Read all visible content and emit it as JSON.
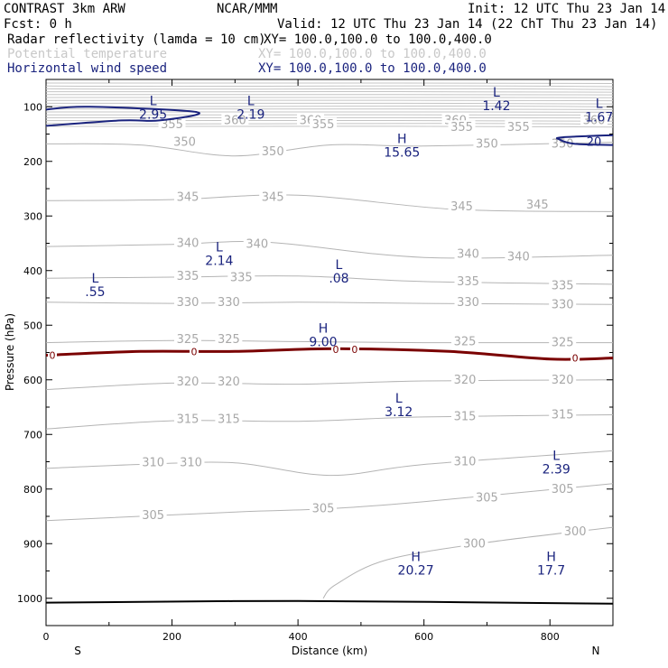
{
  "header": {
    "model": "CONTRAST  3km ARW",
    "org": "NCAR/MMM",
    "init": "Init: 12 UTC Thu 23 Jan 14",
    "fcst": "Fcst:     0 h",
    "valid": "Valid: 12 UTC Thu 23 Jan 14 (22 ChT Thu 23 Jan 14)"
  },
  "legend": [
    {
      "name": "Radar reflectivity (lamda = 10 cm)",
      "xy": "XY= 100.0,100.0 to 100.0,400.0",
      "color": "#000000"
    },
    {
      "name": "Potential temperature",
      "xy": "XY= 100.0,100.0 to 100.0,400.0",
      "color": "#b4b4b4"
    },
    {
      "name": "Horizontal wind speed",
      "xy": "XY= 100.0,100.0 to 100.0,400.0",
      "color": "#1a237e"
    }
  ],
  "chart_data": {
    "type": "contour",
    "xlabel": "Distance (km)",
    "ylabel": "Pressure (hPa)",
    "xlim": [
      0,
      900
    ],
    "ylim": [
      1050,
      50
    ],
    "xticks": [
      0,
      200,
      400,
      600,
      800
    ],
    "yticks": [
      100,
      200,
      300,
      400,
      500,
      600,
      700,
      800,
      900,
      1000
    ],
    "x_end_labels": {
      "left": "S",
      "right": "N"
    },
    "theta_contours": [
      {
        "value": 350,
        "points": [
          [
            0,
            168
          ],
          [
            150,
            170
          ],
          [
            300,
            190
          ],
          [
            450,
            170
          ],
          [
            600,
            172
          ],
          [
            900,
            165
          ]
        ],
        "labels": [
          [
            220,
            165
          ],
          [
            360,
            182
          ],
          [
            700,
            168
          ],
          [
            820,
            168
          ]
        ]
      },
      {
        "value": 345,
        "points": [
          [
            0,
            272
          ],
          [
            200,
            270
          ],
          [
            400,
            262
          ],
          [
            650,
            288
          ],
          [
            900,
            292
          ]
        ],
        "labels": [
          [
            225,
            266
          ],
          [
            360,
            266
          ],
          [
            660,
            283
          ],
          [
            780,
            280
          ]
        ]
      },
      {
        "value": 340,
        "points": [
          [
            0,
            356
          ],
          [
            200,
            352
          ],
          [
            350,
            348
          ],
          [
            600,
            376
          ],
          [
            900,
            372
          ]
        ],
        "labels": [
          [
            225,
            350
          ],
          [
            335,
            352
          ],
          [
            670,
            370
          ],
          [
            750,
            375
          ]
        ]
      },
      {
        "value": 335,
        "points": [
          [
            0,
            414
          ],
          [
            200,
            412
          ],
          [
            400,
            410
          ],
          [
            600,
            420
          ],
          [
            900,
            425
          ]
        ],
        "labels": [
          [
            225,
            410
          ],
          [
            310,
            413
          ],
          [
            670,
            420
          ],
          [
            820,
            428
          ]
        ]
      },
      {
        "value": 330,
        "points": [
          [
            0,
            458
          ],
          [
            200,
            460
          ],
          [
            400,
            458
          ],
          [
            600,
            460
          ],
          [
            900,
            462
          ]
        ],
        "labels": [
          [
            225,
            458
          ],
          [
            290,
            458
          ],
          [
            670,
            458
          ],
          [
            820,
            462
          ]
        ]
      },
      {
        "value": 325,
        "points": [
          [
            0,
            532
          ],
          [
            200,
            528
          ],
          [
            400,
            530
          ],
          [
            600,
            532
          ],
          [
            900,
            532
          ]
        ],
        "labels": [
          [
            225,
            526
          ],
          [
            290,
            526
          ],
          [
            665,
            530
          ],
          [
            820,
            532
          ]
        ]
      },
      {
        "value": 320,
        "points": [
          [
            0,
            618
          ],
          [
            200,
            606
          ],
          [
            400,
            608
          ],
          [
            600,
            602
          ],
          [
            900,
            600
          ]
        ],
        "labels": [
          [
            225,
            604
          ],
          [
            290,
            604
          ],
          [
            665,
            600
          ],
          [
            820,
            600
          ]
        ]
      },
      {
        "value": 315,
        "points": [
          [
            0,
            690
          ],
          [
            200,
            675
          ],
          [
            400,
            676
          ],
          [
            600,
            668
          ],
          [
            900,
            664
          ]
        ],
        "labels": [
          [
            225,
            672
          ],
          [
            290,
            672
          ],
          [
            665,
            667
          ],
          [
            820,
            664
          ]
        ]
      },
      {
        "value": 310,
        "points": [
          [
            0,
            762
          ],
          [
            150,
            755
          ],
          [
            300,
            752
          ],
          [
            450,
            775
          ],
          [
            600,
            755
          ],
          [
            900,
            730
          ]
        ],
        "labels": [
          [
            170,
            752
          ],
          [
            230,
            752
          ],
          [
            665,
            750
          ]
        ]
      },
      {
        "value": 305,
        "points": [
          [
            0,
            858
          ],
          [
            300,
            842
          ],
          [
            450,
            836
          ],
          [
            600,
            823
          ],
          [
            900,
            790
          ]
        ],
        "labels": [
          [
            170,
            848
          ],
          [
            440,
            836
          ],
          [
            700,
            816
          ],
          [
            820,
            800
          ]
        ]
      },
      {
        "value": 300,
        "points": [
          [
            440,
            1000
          ],
          [
            460,
            975
          ],
          [
            540,
            930
          ],
          [
            700,
            898
          ],
          [
            900,
            870
          ]
        ],
        "labels": [
          [
            680,
            900
          ],
          [
            840,
            878
          ]
        ]
      }
    ],
    "wind_contours": [
      {
        "value": 20,
        "points": [
          [
            0,
            105
          ],
          [
            70,
            100
          ],
          [
            240,
            110
          ],
          [
            180,
            125
          ],
          [
            120,
            125
          ],
          [
            0,
            135
          ]
        ],
        "labels": []
      },
      {
        "value": 20,
        "points": [
          [
            900,
            152
          ],
          [
            820,
            156
          ],
          [
            815,
            160
          ],
          [
            840,
            168
          ],
          [
            900,
            170
          ]
        ],
        "labels": [
          [
            870,
            165
          ]
        ]
      }
    ],
    "reflectivity_contours": [
      {
        "value": 0,
        "points": [
          [
            0,
            555
          ],
          [
            150,
            548
          ],
          [
            300,
            548
          ],
          [
            460,
            543
          ],
          [
            640,
            548
          ],
          [
            800,
            562
          ],
          [
            900,
            560
          ]
        ],
        "labels": [
          [
            10,
            555
          ],
          [
            235,
            548
          ],
          [
            460,
            544
          ],
          [
            490,
            544
          ],
          [
            840,
            560
          ]
        ]
      }
    ],
    "extrema": [
      {
        "type": "L",
        "value": "2.95",
        "x": 170,
        "p": 100
      },
      {
        "type": "L",
        "value": "2.19",
        "x": 325,
        "p": 100
      },
      {
        "type": "L",
        "value": "1.42",
        "x": 715,
        "p": 85
      },
      {
        "type": "L",
        "value": "1.67",
        "x": 878,
        "p": 105
      },
      {
        "type": "H",
        "value": "15.65",
        "x": 565,
        "p": 170
      },
      {
        "type": "L",
        "value": "2.14",
        "x": 275,
        "p": 368
      },
      {
        "type": "L",
        "value": ".08",
        "x": 465,
        "p": 400
      },
      {
        "type": "L",
        "value": ".55",
        "x": 78,
        "p": 425
      },
      {
        "type": "H",
        "value": "9.00",
        "x": 440,
        "p": 517
      },
      {
        "type": "L",
        "value": "3.12",
        "x": 560,
        "p": 645
      },
      {
        "type": "L",
        "value": "2.39",
        "x": 810,
        "p": 750
      },
      {
        "type": "H",
        "value": "20.27",
        "x": 587,
        "p": 935
      },
      {
        "type": "H",
        "value": "17.7",
        "x": 802,
        "p": 935
      }
    ],
    "surface": [
      [
        0,
        1008
      ],
      [
        400,
        1005
      ],
      [
        900,
        1010
      ]
    ]
  }
}
